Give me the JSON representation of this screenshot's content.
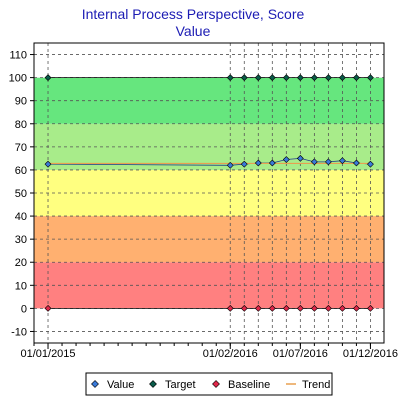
{
  "chart_data": {
    "type": "line",
    "title": "Internal Process Perspective, Score",
    "subtitle": "Value",
    "xlabel": "",
    "ylabel": "",
    "x_domain": [
      "2014-12-01",
      "2016-12-31"
    ],
    "x_ticks": [
      {
        "date": "2015-01-01",
        "label": "01/01/2015"
      },
      {
        "date": "2016-02-01",
        "label": "01/02/2016"
      },
      {
        "date": "2016-07-01",
        "label": "01/07/2016"
      },
      {
        "date": "2016-12-01",
        "label": "01/12/2016"
      }
    ],
    "ylim": [
      -15,
      115
    ],
    "y_ticks": [
      -10,
      0,
      10,
      20,
      30,
      40,
      50,
      60,
      70,
      80,
      90,
      100,
      110
    ],
    "grid": true,
    "legend_position": "bottom",
    "bands": [
      {
        "from": -15,
        "to": 0,
        "color": "#ffffff"
      },
      {
        "from": 0,
        "to": 20,
        "color": "#ff8080"
      },
      {
        "from": 20,
        "to": 40,
        "color": "#ffb070"
      },
      {
        "from": 40,
        "to": 60,
        "color": "#ffff80"
      },
      {
        "from": 60,
        "to": 80,
        "color": "#a8ec8a"
      },
      {
        "from": 80,
        "to": 100,
        "color": "#66e67e"
      },
      {
        "from": 100,
        "to": 115,
        "color": "#ffffff"
      }
    ],
    "series": [
      {
        "name": "Value",
        "color": "#3a7ad8",
        "x": [
          "2015-01-01",
          "2016-02-01",
          "2016-03-01",
          "2016-04-01",
          "2016-05-01",
          "2016-06-01",
          "2016-07-01",
          "2016-08-01",
          "2016-09-01",
          "2016-10-01",
          "2016-11-01",
          "2016-12-01"
        ],
        "values": [
          62.5,
          62,
          62.5,
          63,
          63,
          64.5,
          65,
          63.5,
          63.5,
          64,
          63,
          62.5
        ]
      },
      {
        "name": "Target",
        "color": "#0a5a4a",
        "x": [
          "2015-01-01",
          "2016-02-01",
          "2016-03-01",
          "2016-04-01",
          "2016-05-01",
          "2016-06-01",
          "2016-07-01",
          "2016-08-01",
          "2016-09-01",
          "2016-10-01",
          "2016-11-01",
          "2016-12-01"
        ],
        "values": [
          100,
          100,
          100,
          100,
          100,
          100,
          100,
          100,
          100,
          100,
          100,
          100
        ]
      },
      {
        "name": "Baseline",
        "color": "#e0284a",
        "x": [
          "2015-01-01",
          "2016-02-01",
          "2016-03-01",
          "2016-04-01",
          "2016-05-01",
          "2016-06-01",
          "2016-07-01",
          "2016-08-01",
          "2016-09-01",
          "2016-10-01",
          "2016-11-01",
          "2016-12-01"
        ],
        "values": [
          0,
          0,
          0,
          0,
          0,
          0,
          0,
          0,
          0,
          0,
          0,
          0
        ]
      },
      {
        "name": "Trend",
        "color": "#e8a050",
        "x": [
          "2015-01-01",
          "2016-12-01"
        ],
        "values": [
          62.8,
          62.8
        ]
      }
    ]
  }
}
